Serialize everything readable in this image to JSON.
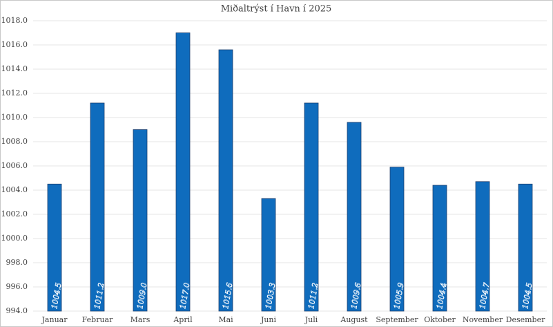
{
  "chart_data": {
    "type": "bar",
    "title": "Miðaltrýst í Havn í 2025",
    "categories": [
      "Januar",
      "Februar",
      "Mars",
      "April",
      "Mai",
      "Juni",
      "Juli",
      "August",
      "September",
      "Oktober",
      "November",
      "Desember"
    ],
    "values": [
      1004.5,
      1011.2,
      1009.0,
      1017.0,
      1015.6,
      1003.3,
      1011.2,
      1009.6,
      1005.9,
      1004.4,
      1004.7,
      1004.5
    ],
    "value_labels": [
      "1004.5",
      "1011.2",
      "1009.0",
      "1017.0",
      "1015.6",
      "1003.3",
      "1011.2",
      "1009.6",
      "1005.9",
      "1004.4",
      "1004.7",
      "1004.5"
    ],
    "color": "#0f6cbd",
    "ylim": [
      994,
      1018
    ],
    "yticks": [
      {
        "value": 994,
        "label": "994.0"
      },
      {
        "value": 996,
        "label": "996.0"
      },
      {
        "value": 998,
        "label": "998.0"
      },
      {
        "value": 1000,
        "label": "1000.0"
      },
      {
        "value": 1002,
        "label": "1002.0"
      },
      {
        "value": 1004,
        "label": "1004.0"
      },
      {
        "value": 1006,
        "label": "1006.0"
      },
      {
        "value": 1008,
        "label": "1008.0"
      },
      {
        "value": 1010,
        "label": "1010.0"
      },
      {
        "value": 1012,
        "label": "1012.0"
      },
      {
        "value": 1014,
        "label": "1014.0"
      },
      {
        "value": 1016,
        "label": "1016.0"
      },
      {
        "value": 1018,
        "label": "1018.0"
      }
    ],
    "grid": true
  }
}
